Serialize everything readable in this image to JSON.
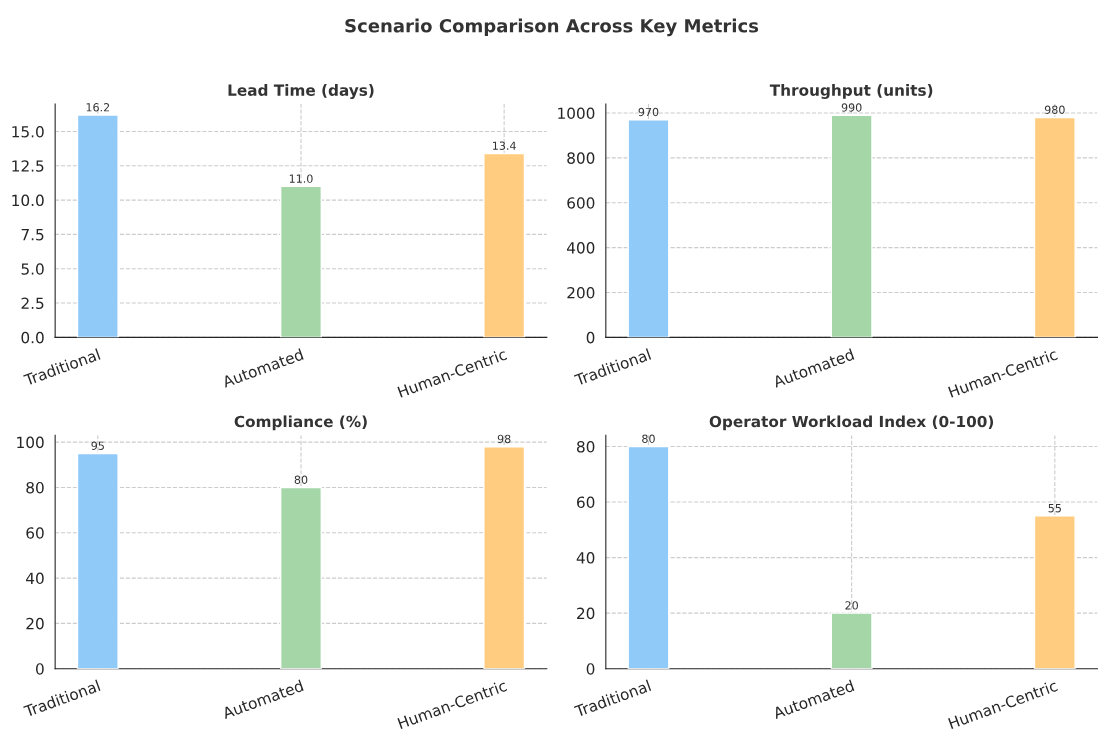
{
  "chart_data": [
    {
      "type": "bar",
      "title": "Lead Time (days)",
      "annotations": [
        "Scenario Comparison Across Key Metrics"
      ],
      "categories": [
        "Traditional",
        "Automated",
        "Human-Centric"
      ],
      "values": [
        16.2,
        11.0,
        13.4
      ],
      "colors": [
        "#90caf9",
        "#a5d6a7",
        "#ffcc80"
      ],
      "value_labels": [
        "16.2",
        "11.0",
        "13.4"
      ],
      "ylim": [
        0,
        17
      ],
      "yticks": [
        {
          "value": 0,
          "label": "0.0"
        },
        2.5,
        {
          "value": 5,
          "label": "5.0"
        },
        7.5,
        {
          "value": 10,
          "label": "10.0"
        },
        12.5,
        {
          "value": 15,
          "label": "15.0"
        }
      ],
      "grid": true
    },
    {
      "type": "bar",
      "title": "Throughput (units)",
      "categories": [
        "Traditional",
        "Automated",
        "Human-Centric"
      ],
      "values": [
        970,
        990,
        980
      ],
      "colors": [
        "#90caf9",
        "#a5d6a7",
        "#ffcc80"
      ],
      "data_labels": true,
      "ylim": [
        0,
        1040
      ],
      "yticks": [
        0,
        200,
        400,
        600,
        800,
        1000
      ],
      "grid": true
    },
    {
      "type": "bar",
      "title": "Compliance (%)",
      "categories": [
        "Traditional",
        "Automated",
        "Human-Centric"
      ],
      "values": [
        95,
        80,
        98
      ],
      "colors": [
        "#90caf9",
        "#a5d6a7",
        "#ffcc80"
      ],
      "data_labels": true,
      "ylim": [
        0,
        103
      ],
      "yticks": [
        0,
        20,
        40,
        60,
        80,
        100
      ],
      "grid": true
    },
    {
      "type": "bar",
      "title": "Operator Workload Index (0-100)",
      "categories": [
        "Traditional",
        "Automated",
        "Human-Centric"
      ],
      "values": [
        80,
        20,
        55
      ],
      "colors": [
        "#90caf9",
        "#a5d6a7",
        "#ffcc80"
      ],
      "data_labels": true,
      "ylim": [
        0,
        84
      ],
      "yticks": [
        0,
        20,
        40,
        60,
        80
      ],
      "grid": true
    }
  ]
}
